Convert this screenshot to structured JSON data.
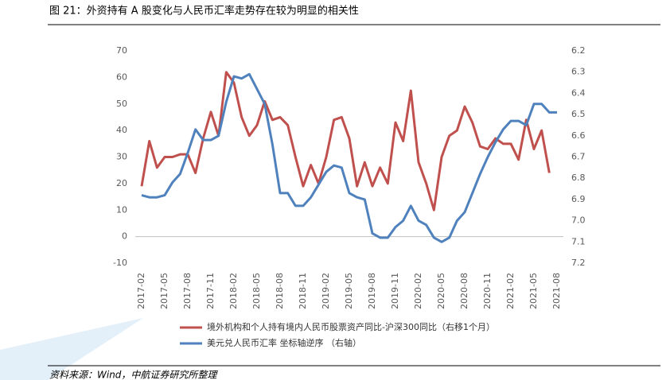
{
  "title": "图 21：外资持有 A 股变化与人民币汇率走势存在较为明显的相关性",
  "source": "资料来源：Wind，中航证券研究所整理",
  "chart_data": {
    "type": "line",
    "categories": [
      "2017-02",
      null,
      null,
      "2017-05",
      null,
      null,
      "2017-08",
      null,
      null,
      "2017-11",
      null,
      null,
      "2018-02",
      null,
      null,
      "2018-05",
      null,
      null,
      "2018-08",
      null,
      null,
      "2018-11",
      null,
      null,
      "2019-02",
      null,
      null,
      "2019-05",
      null,
      null,
      "2019-08",
      null,
      null,
      "2019-11",
      null,
      null,
      "2020-02",
      null,
      null,
      "2020-05",
      null,
      null,
      "2020-08",
      null,
      null,
      "2020-11",
      null,
      null,
      "2021-02",
      null,
      null,
      "2021-05",
      null,
      null,
      "2021-08"
    ],
    "series": [
      {
        "name": "境外机构和个人持有境内人民币股票资产同比-沪深300同比（右移1个月）",
        "color": "#c0504d",
        "values": [
          19,
          36,
          26,
          30,
          30,
          31,
          31,
          24,
          37,
          47,
          38,
          62,
          58,
          45,
          38,
          42,
          51,
          44,
          45,
          42,
          30,
          19,
          27,
          20,
          30,
          44,
          45,
          37,
          19,
          28,
          19,
          26,
          20,
          43,
          36,
          55,
          28,
          20,
          10,
          30,
          38,
          40,
          49,
          43,
          34,
          33,
          37,
          35,
          35,
          29,
          44,
          33,
          40,
          24,
          null
        ]
      },
      {
        "name": "美元兑人民币汇率  坐标轴逆序 （右轴）",
        "color": "#4f81bd",
        "axis": "y2",
        "values": [
          6.88,
          6.89,
          6.89,
          6.88,
          6.82,
          6.78,
          6.68,
          6.57,
          6.62,
          6.62,
          6.6,
          6.44,
          6.32,
          6.33,
          6.31,
          6.38,
          6.45,
          6.64,
          6.87,
          6.87,
          6.93,
          6.93,
          6.89,
          6.83,
          6.77,
          6.74,
          6.75,
          6.87,
          6.89,
          6.9,
          7.06,
          7.08,
          7.08,
          7.03,
          7.0,
          6.93,
          7.0,
          7.02,
          7.08,
          7.1,
          7.08,
          7.0,
          6.96,
          6.87,
          6.78,
          6.7,
          6.63,
          6.57,
          6.53,
          6.53,
          6.55,
          6.45,
          6.45,
          6.49,
          6.49
        ]
      }
    ],
    "ylim": [
      -10,
      70
    ],
    "yticks": [
      -10,
      0,
      10,
      20,
      30,
      40,
      50,
      60,
      70
    ],
    "y2lim": [
      7.2,
      6.2
    ],
    "y2ticks": [
      6.2,
      6.3,
      6.4,
      6.5,
      6.6,
      6.7,
      6.8,
      6.9,
      {
        "value": 7,
        "label": "7.0"
      },
      7.1,
      7.2
    ]
  }
}
